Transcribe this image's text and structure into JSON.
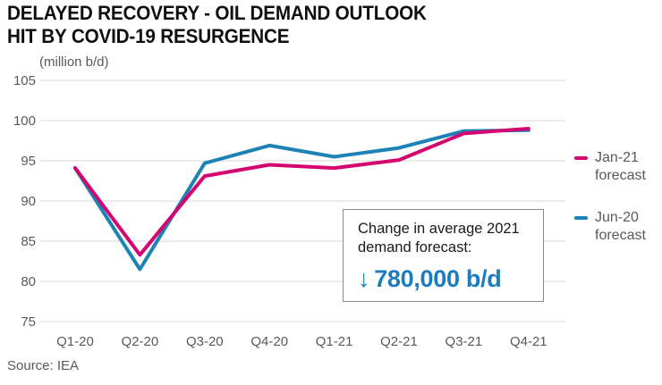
{
  "chart_data": {
    "type": "line",
    "title": "DELAYED RECOVERY - OIL DEMAND OUTLOOK\nHIT BY COVID-19 RESURGENCE",
    "unit_label": "(million b/d)",
    "categories": [
      "Q1-20",
      "Q2-20",
      "Q3-20",
      "Q4-20",
      "Q1-21",
      "Q2-21",
      "Q3-21",
      "Q4-21"
    ],
    "series": [
      {
        "name": "Jan-21 forecast",
        "color": "#d4056f",
        "values": [
          94.1,
          83.3,
          93.1,
          94.5,
          94.1,
          95.1,
          98.4,
          99.0
        ]
      },
      {
        "name": "Jun-20 forecast",
        "color": "#1d83b5",
        "values": [
          94.1,
          81.5,
          94.7,
          96.9,
          95.5,
          96.6,
          98.7,
          98.8
        ]
      }
    ],
    "ylim": [
      75,
      105
    ],
    "y_ticks": [
      105,
      100,
      95,
      90,
      85,
      80,
      75
    ],
    "grid": true,
    "legend_position": "right",
    "annotation": {
      "text": "Change in average 2021\ndemand forecast:",
      "arrow": "↓",
      "value": "780,000 b/d",
      "value_color": "#1a7dbf"
    },
    "source": "Source: IEA"
  },
  "colors": {
    "gridline": "#d9d9d9",
    "tick_text": "#595959",
    "title_text": "#0f0f0f",
    "callout_border": "#8a8a8a"
  }
}
